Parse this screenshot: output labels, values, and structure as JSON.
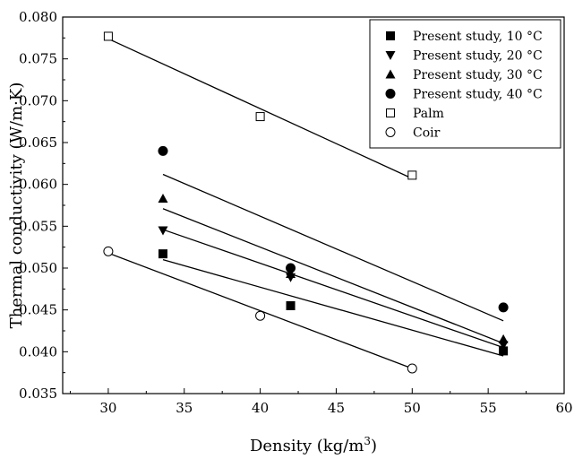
{
  "chart_data": {
    "type": "scatter",
    "xlabel": "Density (kg/m",
    "xlabel_sup": "3",
    "xlabel_end": ")",
    "ylabel": "Thermal conductivity (W/m·K)",
    "xlim": [
      27,
      60
    ],
    "ylim": [
      0.035,
      0.08
    ],
    "xticks": [
      "30",
      "35",
      "40",
      "45",
      "50",
      "55",
      "60"
    ],
    "yticks": [
      "0.035",
      "0.040",
      "0.045",
      "0.050",
      "0.055",
      "0.060",
      "0.065",
      "0.070",
      "0.075",
      "0.080"
    ],
    "legend_position": "top-right",
    "series": [
      {
        "name": "Present study, 10 °C",
        "marker": "square-filled",
        "x": [
          33.6,
          42.0,
          56.0
        ],
        "y": [
          0.0517,
          0.0455,
          0.0401
        ],
        "fit": [
          [
            33.6,
            0.051
          ],
          [
            56.0,
            0.0395
          ]
        ]
      },
      {
        "name": "Present study, 20 °C",
        "marker": "triangle-down-filled",
        "x": [
          33.6,
          42.0,
          56.0
        ],
        "y": [
          0.0545,
          0.0489,
          0.0408
        ],
        "fit": [
          [
            33.6,
            0.0546
          ],
          [
            56.0,
            0.0405
          ]
        ]
      },
      {
        "name": "Present study, 30 °C",
        "marker": "triangle-up-filled",
        "x": [
          33.6,
          42.0,
          56.0
        ],
        "y": [
          0.0583,
          0.0493,
          0.0415
        ],
        "fit": [
          [
            33.6,
            0.0571
          ],
          [
            56.0,
            0.041
          ]
        ]
      },
      {
        "name": "Present study, 40 °C",
        "marker": "circle-filled",
        "x": [
          33.6,
          42.0,
          56.0
        ],
        "y": [
          0.064,
          0.05,
          0.0453
        ],
        "fit": [
          [
            33.6,
            0.0612
          ],
          [
            56.0,
            0.0437
          ]
        ]
      },
      {
        "name": "Palm",
        "marker": "square-open",
        "x": [
          30.0,
          40.0,
          50.0
        ],
        "y": [
          0.0777,
          0.0681,
          0.0611
        ],
        "fit": [
          [
            30.0,
            0.0774
          ],
          [
            50.0,
            0.0607
          ]
        ]
      },
      {
        "name": "Coir",
        "marker": "circle-open",
        "x": [
          30.0,
          40.0,
          50.0
        ],
        "y": [
          0.052,
          0.0443,
          0.038
        ],
        "fit": [
          [
            30.0,
            0.0518
          ],
          [
            50.0,
            0.038
          ]
        ]
      }
    ]
  }
}
